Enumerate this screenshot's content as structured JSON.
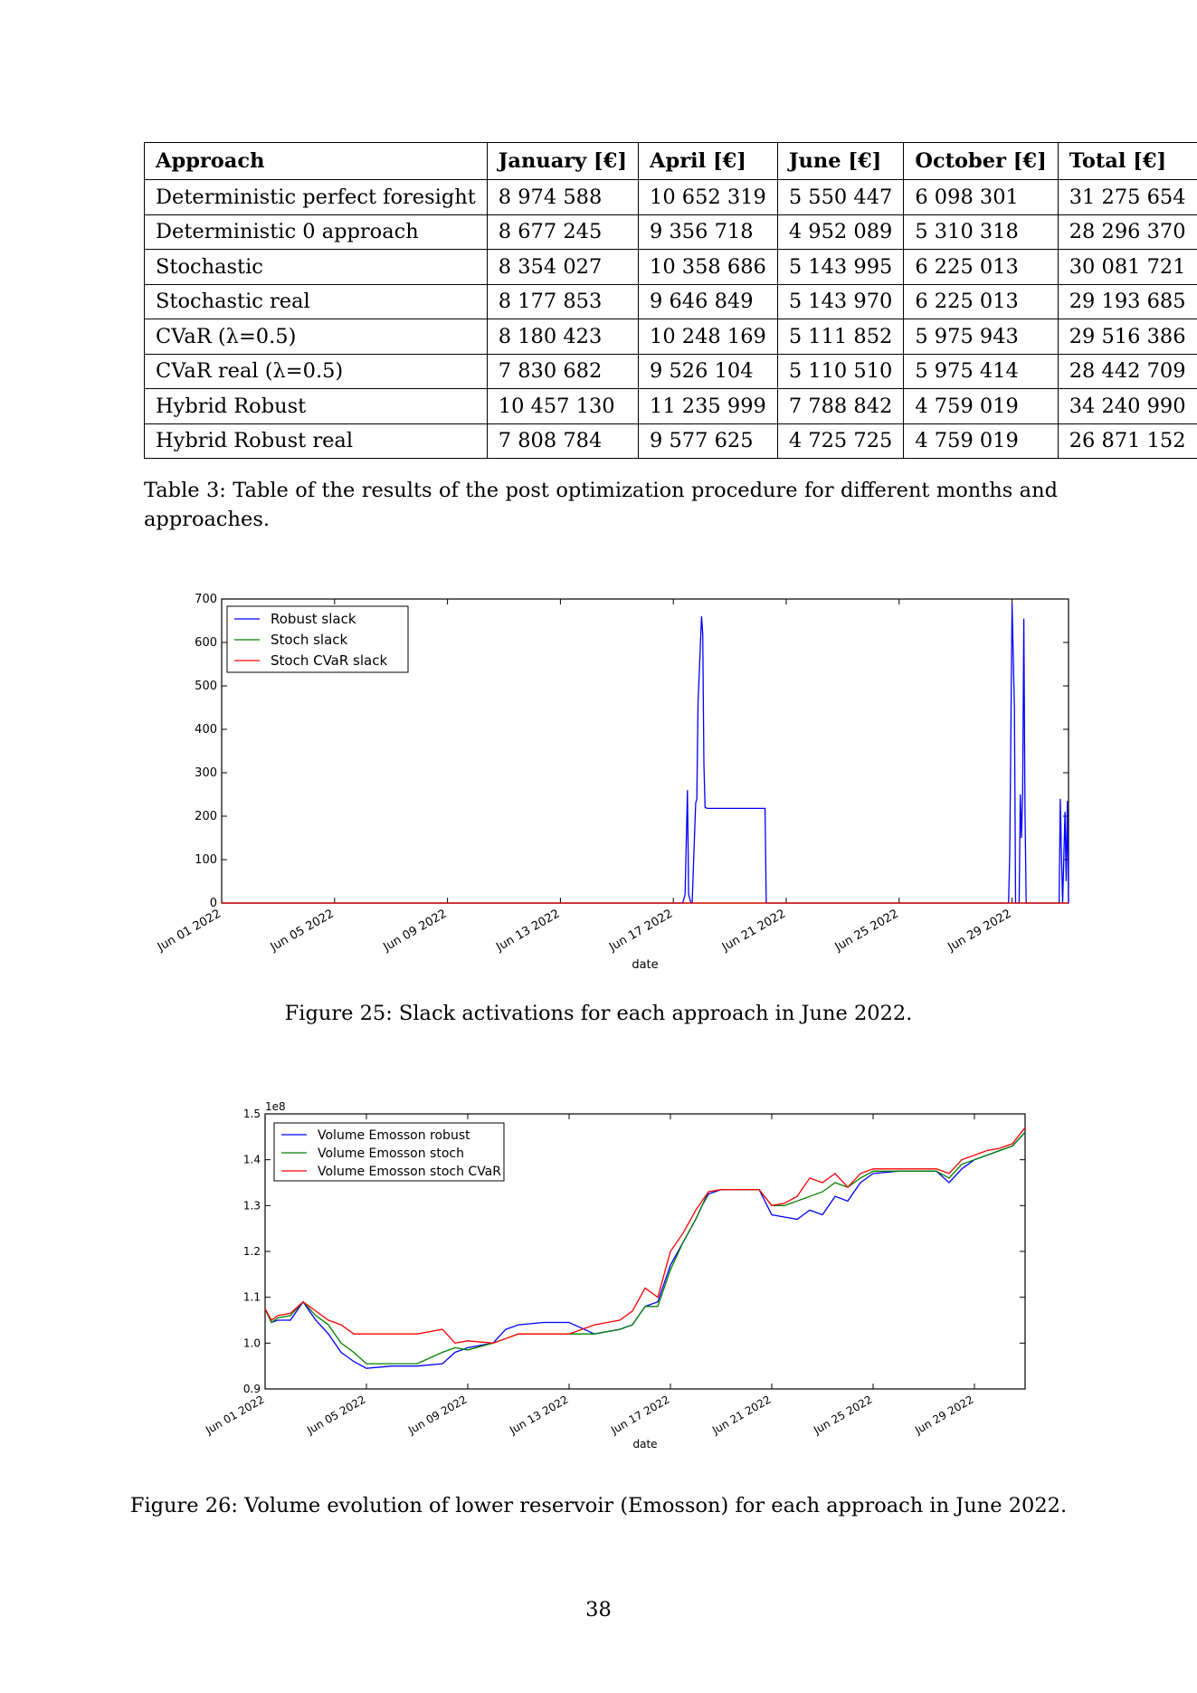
{
  "table": {
    "headers": [
      "Approach",
      "January [€]",
      "April [€]",
      "June [€]",
      "October [€]",
      "Total [€]"
    ],
    "rows": [
      [
        "Deterministic perfect foresight",
        "8 974 588",
        "10 652 319",
        "5 550 447",
        "6 098 301",
        "31 275 654"
      ],
      [
        "Deterministic 0 approach",
        "8 677 245",
        "9 356 718",
        "4 952 089",
        "5 310 318",
        "28 296 370"
      ],
      [
        "Stochastic",
        "8 354 027",
        "10 358 686",
        "5 143 995",
        "6 225 013",
        "30 081 721"
      ],
      [
        "Stochastic real",
        "8 177 853",
        "9 646 849",
        "5 143 970",
        "6 225 013",
        "29 193 685"
      ],
      [
        "CVaR (λ=0.5)",
        "8 180 423",
        "10 248 169",
        "5 111 852",
        "5 975 943",
        "29 516 386"
      ],
      [
        "CVaR real (λ=0.5)",
        "7 830 682",
        "9 526 104",
        "5 110 510",
        "5 975 414",
        "28 442 709"
      ],
      [
        "Hybrid Robust",
        "10 457 130",
        "11 235 999",
        "7 788 842",
        "4 759 019",
        "34 240 990"
      ],
      [
        "Hybrid Robust real",
        "7 808 784",
        "9 577 625",
        "4 725 725",
        "4 759 019",
        "26 871 152"
      ]
    ],
    "caption": "Table 3: Table of the results of the post optimization procedure for different months and approaches."
  },
  "chart_data": [
    {
      "type": "line",
      "xlabel": "date",
      "ylabel": "",
      "ylim": [
        0,
        700
      ],
      "yticks": [
        "0",
        "100",
        "200",
        "300",
        "400",
        "500",
        "600",
        "700"
      ],
      "xlim": [
        "2022-06-01",
        "2022-07-01"
      ],
      "xticks": [
        "Jun 01 2022",
        "Jun 05 2022",
        "Jun 09 2022",
        "Jun 13 2022",
        "Jun 17 2022",
        "Jun 21 2022",
        "Jun 25 2022",
        "Jun 29 2022"
      ],
      "legend_position": "top-left",
      "series": [
        {
          "name": "Robust slack",
          "color": "#0000ff",
          "x": [
            "2022-06-01",
            "2022-06-17 08:00",
            "2022-06-17 10:00",
            "2022-06-17 11:00",
            "2022-06-17 12:00",
            "2022-06-17 13:00",
            "2022-06-17 15:00",
            "2022-06-17 16:00",
            "2022-06-17 19:00",
            "2022-06-17 20:00",
            "2022-06-17 21:00",
            "2022-06-18 00:00",
            "2022-06-18 01:00",
            "2022-06-18 02:00",
            "2022-06-18 03:00",
            "2022-06-18 05:00",
            "2022-06-20 06:00",
            "2022-06-20 07:00",
            "2022-06-28 21:00",
            "2022-06-28 22:00",
            "2022-06-29 00:00",
            "2022-06-29 01:00",
            "2022-06-29 02:00",
            "2022-06-29 03:00",
            "2022-06-29 06:00",
            "2022-06-29 07:00",
            "2022-06-29 08:00",
            "2022-06-29 09:00",
            "2022-06-29 10:00",
            "2022-06-29 11:00",
            "2022-06-29 12:00",
            "2022-06-29 13:00",
            "2022-06-30 16:00",
            "2022-06-30 17:00",
            "2022-06-30 18:00",
            "2022-06-30 19:00",
            "2022-06-30 21:00",
            "2022-06-30 22:00",
            "2022-06-30 23:00",
            "2022-07-01"
          ],
          "y": [
            0,
            0,
            20,
            140,
            260,
            20,
            0,
            0,
            230,
            240,
            460,
            660,
            620,
            320,
            220,
            218,
            218,
            0,
            0,
            110,
            690,
            570,
            450,
            0,
            0,
            250,
            150,
            250,
            655,
            210,
            0,
            0,
            0,
            240,
            110,
            0,
            210,
            50,
            235,
            0
          ]
        },
        {
          "name": "Stoch slack",
          "color": "#008000",
          "x": [
            "2022-06-01",
            "2022-07-01"
          ],
          "y": [
            0,
            0
          ]
        },
        {
          "name": "Stoch CVaR slack",
          "color": "#ff0000",
          "x": [
            "2022-06-01",
            "2022-07-01"
          ],
          "y": [
            0,
            0
          ]
        }
      ],
      "caption": "Figure 25: Slack activations for each approach in June 2022."
    },
    {
      "type": "line",
      "xlabel": "date",
      "ylabel": "",
      "yscale_label": "1e8",
      "ylim": [
        0.9,
        1.5
      ],
      "yticks": [
        "0.9",
        "1.0",
        "1.1",
        "1.2",
        "1.3",
        "1.4",
        "1.5"
      ],
      "xlim": [
        "2022-06-01",
        "2022-07-01"
      ],
      "xticks": [
        "Jun 01 2022",
        "Jun 05 2022",
        "Jun 09 2022",
        "Jun 13 2022",
        "Jun 17 2022",
        "Jun 21 2022",
        "Jun 25 2022",
        "Jun 29 2022"
      ],
      "legend_position": "top-left",
      "series": [
        {
          "name": "Volume Emosson robust",
          "color": "#0000ff",
          "x": [
            "2022-06-01",
            "2022-06-01 06:00",
            "2022-06-01 12:00",
            "2022-06-02",
            "2022-06-02 12:00",
            "2022-06-03",
            "2022-06-03 12:00",
            "2022-06-04",
            "2022-06-04 12:00",
            "2022-06-05",
            "2022-06-06",
            "2022-06-07",
            "2022-06-08",
            "2022-06-08 12:00",
            "2022-06-09",
            "2022-06-10",
            "2022-06-10 12:00",
            "2022-06-11",
            "2022-06-12",
            "2022-06-13",
            "2022-06-14",
            "2022-06-15",
            "2022-06-15 12:00",
            "2022-06-16",
            "2022-06-16 12:00",
            "2022-06-17",
            "2022-06-17 12:00",
            "2022-06-18",
            "2022-06-18 06:00",
            "2022-06-18 12:00",
            "2022-06-19",
            "2022-06-20",
            "2022-06-20 12:00",
            "2022-06-21",
            "2022-06-21 12:00",
            "2022-06-22",
            "2022-06-22 12:00",
            "2022-06-23",
            "2022-06-23 12:00",
            "2022-06-24",
            "2022-06-24 12:00",
            "2022-06-25",
            "2022-06-26",
            "2022-06-27",
            "2022-06-27 12:00",
            "2022-06-28",
            "2022-06-28 12:00",
            "2022-06-29",
            "2022-06-29 12:00",
            "2022-06-30",
            "2022-06-30 12:00",
            "2022-07-01"
          ],
          "y": [
            1.075,
            1.045,
            1.05,
            1.05,
            1.09,
            1.05,
            1.02,
            0.98,
            0.96,
            0.945,
            0.95,
            0.95,
            0.955,
            0.98,
            0.99,
            1.0,
            1.03,
            1.04,
            1.045,
            1.045,
            1.02,
            1.03,
            1.04,
            1.08,
            1.09,
            1.17,
            1.22,
            1.27,
            1.3,
            1.325,
            1.335,
            1.335,
            1.335,
            1.28,
            1.275,
            1.27,
            1.29,
            1.28,
            1.32,
            1.31,
            1.35,
            1.37,
            1.375,
            1.375,
            1.375,
            1.35,
            1.38,
            1.4,
            1.41,
            1.42,
            1.43,
            1.46
          ]
        },
        {
          "name": "Volume Emosson stoch",
          "color": "#008000",
          "x": [
            "2022-06-01",
            "2022-06-01 06:00",
            "2022-06-01 12:00",
            "2022-06-02",
            "2022-06-02 12:00",
            "2022-06-03",
            "2022-06-03 12:00",
            "2022-06-04",
            "2022-06-04 12:00",
            "2022-06-05",
            "2022-06-06",
            "2022-06-07",
            "2022-06-08",
            "2022-06-08 12:00",
            "2022-06-09",
            "2022-06-10",
            "2022-06-10 12:00",
            "2022-06-11",
            "2022-06-12",
            "2022-06-13",
            "2022-06-14",
            "2022-06-15",
            "2022-06-15 12:00",
            "2022-06-16",
            "2022-06-16 12:00",
            "2022-06-17",
            "2022-06-17 12:00",
            "2022-06-18",
            "2022-06-18 06:00",
            "2022-06-18 12:00",
            "2022-06-19",
            "2022-06-20",
            "2022-06-20 12:00",
            "2022-06-21",
            "2022-06-21 12:00",
            "2022-06-22",
            "2022-06-22 12:00",
            "2022-06-23",
            "2022-06-23 12:00",
            "2022-06-24",
            "2022-06-24 12:00",
            "2022-06-25",
            "2022-06-26",
            "2022-06-27",
            "2022-06-27 12:00",
            "2022-06-28",
            "2022-06-28 12:00",
            "2022-06-29",
            "2022-06-29 12:00",
            "2022-06-30",
            "2022-06-30 12:00",
            "2022-07-01"
          ],
          "y": [
            1.075,
            1.045,
            1.055,
            1.06,
            1.09,
            1.06,
            1.04,
            1.0,
            0.98,
            0.955,
            0.955,
            0.955,
            0.98,
            0.99,
            0.985,
            1.0,
            1.01,
            1.02,
            1.02,
            1.02,
            1.02,
            1.03,
            1.04,
            1.08,
            1.08,
            1.16,
            1.22,
            1.27,
            1.3,
            1.33,
            1.335,
            1.335,
            1.335,
            1.3,
            1.3,
            1.31,
            1.32,
            1.33,
            1.35,
            1.34,
            1.36,
            1.375,
            1.375,
            1.375,
            1.375,
            1.36,
            1.39,
            1.4,
            1.41,
            1.42,
            1.43,
            1.46
          ]
        },
        {
          "name": "Volume Emosson stoch CVaR",
          "color": "#ff0000",
          "x": [
            "2022-06-01",
            "2022-06-01 06:00",
            "2022-06-01 12:00",
            "2022-06-02",
            "2022-06-02 12:00",
            "2022-06-03",
            "2022-06-03 12:00",
            "2022-06-04",
            "2022-06-04 12:00",
            "2022-06-05",
            "2022-06-06",
            "2022-06-07",
            "2022-06-08",
            "2022-06-08 12:00",
            "2022-06-09",
            "2022-06-10",
            "2022-06-10 12:00",
            "2022-06-11",
            "2022-06-12",
            "2022-06-13",
            "2022-06-14",
            "2022-06-15",
            "2022-06-15 12:00",
            "2022-06-16",
            "2022-06-16 12:00",
            "2022-06-17",
            "2022-06-17 12:00",
            "2022-06-18",
            "2022-06-18 06:00",
            "2022-06-18 12:00",
            "2022-06-19",
            "2022-06-20",
            "2022-06-20 12:00",
            "2022-06-21",
            "2022-06-21 12:00",
            "2022-06-22",
            "2022-06-22 12:00",
            "2022-06-23",
            "2022-06-23 12:00",
            "2022-06-24",
            "2022-06-24 12:00",
            "2022-06-25",
            "2022-06-26",
            "2022-06-27",
            "2022-06-27 12:00",
            "2022-06-28",
            "2022-06-28 12:00",
            "2022-06-29",
            "2022-06-29 12:00",
            "2022-06-30",
            "2022-06-30 12:00",
            "2022-07-01"
          ],
          "y": [
            1.075,
            1.05,
            1.06,
            1.065,
            1.09,
            1.07,
            1.05,
            1.04,
            1.02,
            1.02,
            1.02,
            1.02,
            1.03,
            1.0,
            1.005,
            1.0,
            1.01,
            1.02,
            1.02,
            1.02,
            1.04,
            1.05,
            1.07,
            1.12,
            1.1,
            1.2,
            1.24,
            1.29,
            1.31,
            1.33,
            1.335,
            1.335,
            1.335,
            1.3,
            1.305,
            1.32,
            1.36,
            1.35,
            1.37,
            1.34,
            1.37,
            1.38,
            1.38,
            1.38,
            1.38,
            1.37,
            1.4,
            1.41,
            1.42,
            1.425,
            1.435,
            1.47
          ]
        }
      ],
      "caption": "Figure 26: Volume evolution of lower reservoir (Emosson) for each approach in June 2022."
    }
  ],
  "page_number": "38"
}
